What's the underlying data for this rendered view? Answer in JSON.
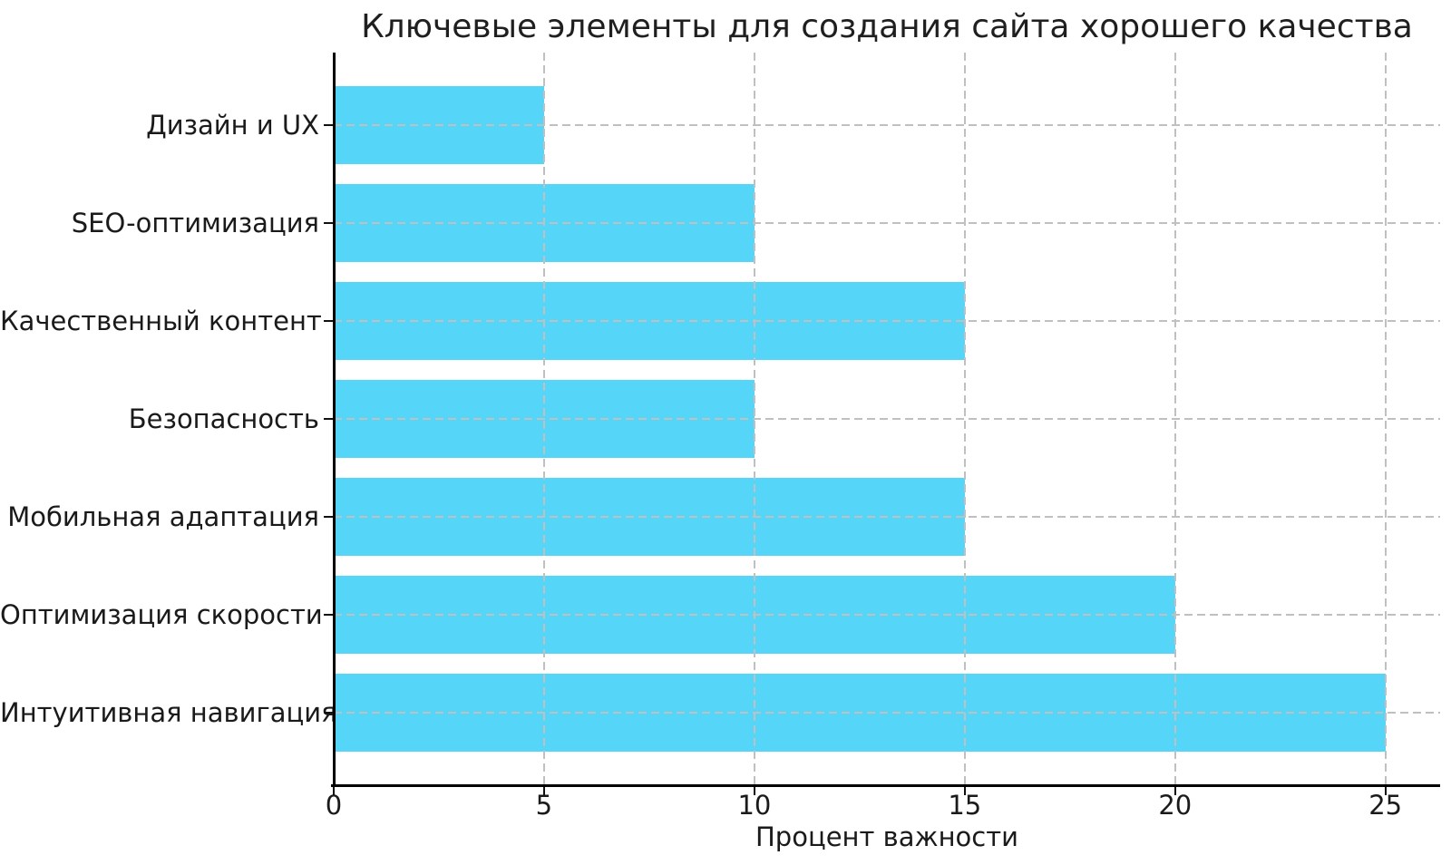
{
  "background_color": "#ffffff",
  "chart_data": {
    "type": "bar",
    "orientation": "horizontal",
    "title": "Ключевые элементы для создания сайта хорошего качества",
    "xlabel": "Процент важности",
    "ylabel": "",
    "categories": [
      "Дизайн и UX",
      "SEO-оптимизация",
      "Качественный контент",
      "Безопасность",
      "Мобильная адаптация",
      "Оптимизация скорости",
      "Интуитивная навигация"
    ],
    "values": [
      5,
      10,
      15,
      10,
      15,
      20,
      25
    ],
    "xticks": [
      0,
      5,
      10,
      15,
      20,
      25
    ],
    "xlim": [
      0,
      26.3
    ],
    "grid": true,
    "grid_style": "dashed",
    "legend": "none",
    "bar_color": "#55d5f8",
    "grid_color": "#c0c0c0",
    "spine_color": "#000000",
    "text_color": "#1a1a1a"
  }
}
